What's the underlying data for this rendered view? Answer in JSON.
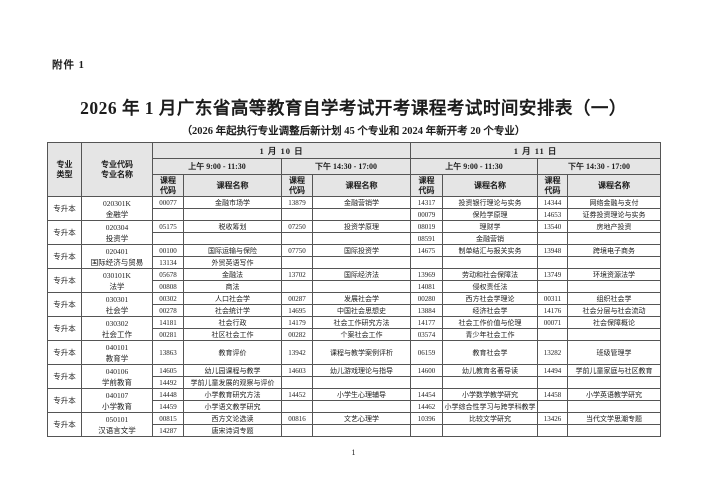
{
  "page": {
    "attachment_label": "附件 1",
    "title": "2026 年 1 月广东省高等教育自学考试开考课程考试时间安排表（一）",
    "subtitle": "（2026 年起执行专业调整后新计划 45 个专业和 2024 年新开考 20 个专业）",
    "page_number": "1"
  },
  "table": {
    "header": {
      "type_line1": "专业",
      "type_line2": "类型",
      "major_line1": "专业代码",
      "major_line2": "专业名称",
      "day1": "1 月 10 日",
      "day2": "1 月 11 日",
      "am": "上午  9:00 - 11:30",
      "pm": "下午  14:30 - 17:00",
      "code_line1": "课程",
      "code_line2": "代码",
      "name": "课程名称"
    },
    "rows": [
      {
        "type": "专升本",
        "major_code": "020301K",
        "major_name": "金融学",
        "sub_rows": [
          [
            {
              "code": "00077",
              "name": "金融市场学"
            },
            {
              "code": "13879",
              "name": "金融营销学"
            },
            {
              "code": "14317",
              "name": "投资银行理论与实务"
            },
            {
              "code": "14344",
              "name": "网络金融与支付"
            }
          ],
          [
            {
              "code": "",
              "name": ""
            },
            {
              "code": "",
              "name": ""
            },
            {
              "code": "00079",
              "name": "保险学原理"
            },
            {
              "code": "14653",
              "name": "证券投资理论与实务"
            }
          ]
        ]
      },
      {
        "type": "专升本",
        "major_code": "020304",
        "major_name": "投资学",
        "sub_rows": [
          [
            {
              "code": "05175",
              "name": "税收筹划"
            },
            {
              "code": "07250",
              "name": "投资学原理"
            },
            {
              "code": "08019",
              "name": "理财学"
            },
            {
              "code": "13540",
              "name": "房地产投资"
            }
          ],
          [
            {
              "code": "",
              "name": ""
            },
            {
              "code": "",
              "name": ""
            },
            {
              "code": "08591",
              "name": "金融营销"
            },
            {
              "code": "",
              "name": ""
            }
          ]
        ]
      },
      {
        "type": "专升本",
        "major_code": "020401",
        "major_name": "国际经济与贸易",
        "sub_rows": [
          [
            {
              "code": "00100",
              "name": "国际运输与保险"
            },
            {
              "code": "07750",
              "name": "国际投资学"
            },
            {
              "code": "14675",
              "name": "制单结汇与报关实务"
            },
            {
              "code": "13948",
              "name": "跨境电子商务"
            }
          ],
          [
            {
              "code": "13134",
              "name": "外贸英语写作"
            },
            {
              "code": "",
              "name": ""
            },
            {
              "code": "",
              "name": ""
            },
            {
              "code": "",
              "name": ""
            }
          ]
        ]
      },
      {
        "type": "专升本",
        "major_code": "030101K",
        "major_name": "法学",
        "sub_rows": [
          [
            {
              "code": "05678",
              "name": "金融法"
            },
            {
              "code": "13702",
              "name": "国际经济法"
            },
            {
              "code": "13969",
              "name": "劳动和社会保障法"
            },
            {
              "code": "13749",
              "name": "环境资源法学"
            }
          ],
          [
            {
              "code": "00808",
              "name": "商法"
            },
            {
              "code": "",
              "name": ""
            },
            {
              "code": "14081",
              "name": "侵权责任法"
            },
            {
              "code": "",
              "name": ""
            }
          ]
        ]
      },
      {
        "type": "专升本",
        "major_code": "030301",
        "major_name": "社会学",
        "sub_rows": [
          [
            {
              "code": "00302",
              "name": "人口社会学"
            },
            {
              "code": "00287",
              "name": "发展社会学"
            },
            {
              "code": "00280",
              "name": "西方社会学理论"
            },
            {
              "code": "00311",
              "name": "组织社会学"
            }
          ],
          [
            {
              "code": "00278",
              "name": "社会统计学"
            },
            {
              "code": "14695",
              "name": "中国社会思想史"
            },
            {
              "code": "13884",
              "name": "经济社会学"
            },
            {
              "code": "14176",
              "name": "社会分层与社会流动"
            }
          ]
        ]
      },
      {
        "type": "专升本",
        "major_code": "030302",
        "major_name": "社会工作",
        "sub_rows": [
          [
            {
              "code": "14181",
              "name": "社会行政"
            },
            {
              "code": "14179",
              "name": "社会工作研究方法"
            },
            {
              "code": "14177",
              "name": "社会工作价值与伦理"
            },
            {
              "code": "00071",
              "name": "社会保障概论"
            }
          ],
          [
            {
              "code": "00281",
              "name": "社区社会工作"
            },
            {
              "code": "00282",
              "name": "个案社会工作"
            },
            {
              "code": "03574",
              "name": "青少年社会工作"
            },
            {
              "code": "",
              "name": ""
            }
          ]
        ]
      },
      {
        "type": "专升本",
        "major_code": "040101",
        "major_name": "教育学",
        "sub_rows": [
          [
            {
              "code": "13863",
              "name": "教育评价"
            },
            {
              "code": "13942",
              "name": "课程与教学案例评析"
            },
            {
              "code": "06159",
              "name": "教育社会学"
            },
            {
              "code": "13282",
              "name": "班级管理学"
            }
          ]
        ]
      },
      {
        "type": "专升本",
        "major_code": "040106",
        "major_name": "学前教育",
        "sub_rows": [
          [
            {
              "code": "14605",
              "name": "幼儿园课程与教学"
            },
            {
              "code": "14603",
              "name": "幼儿游戏理论与指导"
            },
            {
              "code": "14600",
              "name": "幼儿教育名著导读"
            },
            {
              "code": "14494",
              "name": "学前儿童家庭与社区教育"
            }
          ],
          [
            {
              "code": "14492",
              "name": "学前儿童发展的观察与评价"
            },
            {
              "code": "",
              "name": ""
            },
            {
              "code": "",
              "name": ""
            },
            {
              "code": "",
              "name": ""
            }
          ]
        ]
      },
      {
        "type": "专升本",
        "major_code": "040107",
        "major_name": "小学教育",
        "sub_rows": [
          [
            {
              "code": "14448",
              "name": "小学教育研究方法"
            },
            {
              "code": "14452",
              "name": "小学生心理辅导"
            },
            {
              "code": "14454",
              "name": "小学数学教学研究"
            },
            {
              "code": "14458",
              "name": "小学英语教学研究"
            }
          ],
          [
            {
              "code": "14459",
              "name": "小学语文教学研究"
            },
            {
              "code": "",
              "name": ""
            },
            {
              "code": "14462",
              "name": "小学综合性学习与跨学科教学"
            },
            {
              "code": "",
              "name": ""
            }
          ]
        ]
      },
      {
        "type": "专升本",
        "major_code": "050101",
        "major_name": "汉语言文学",
        "sub_rows": [
          [
            {
              "code": "00815",
              "name": "西方文论选读"
            },
            {
              "code": "00816",
              "name": "文艺心理学"
            },
            {
              "code": "10396",
              "name": "比较文学研究"
            },
            {
              "code": "13426",
              "name": "当代文学思潮专题"
            }
          ],
          [
            {
              "code": "14287",
              "name": "唐宋诗词专题"
            },
            {
              "code": "",
              "name": ""
            },
            {
              "code": "",
              "name": ""
            },
            {
              "code": "",
              "name": ""
            }
          ]
        ]
      }
    ]
  }
}
